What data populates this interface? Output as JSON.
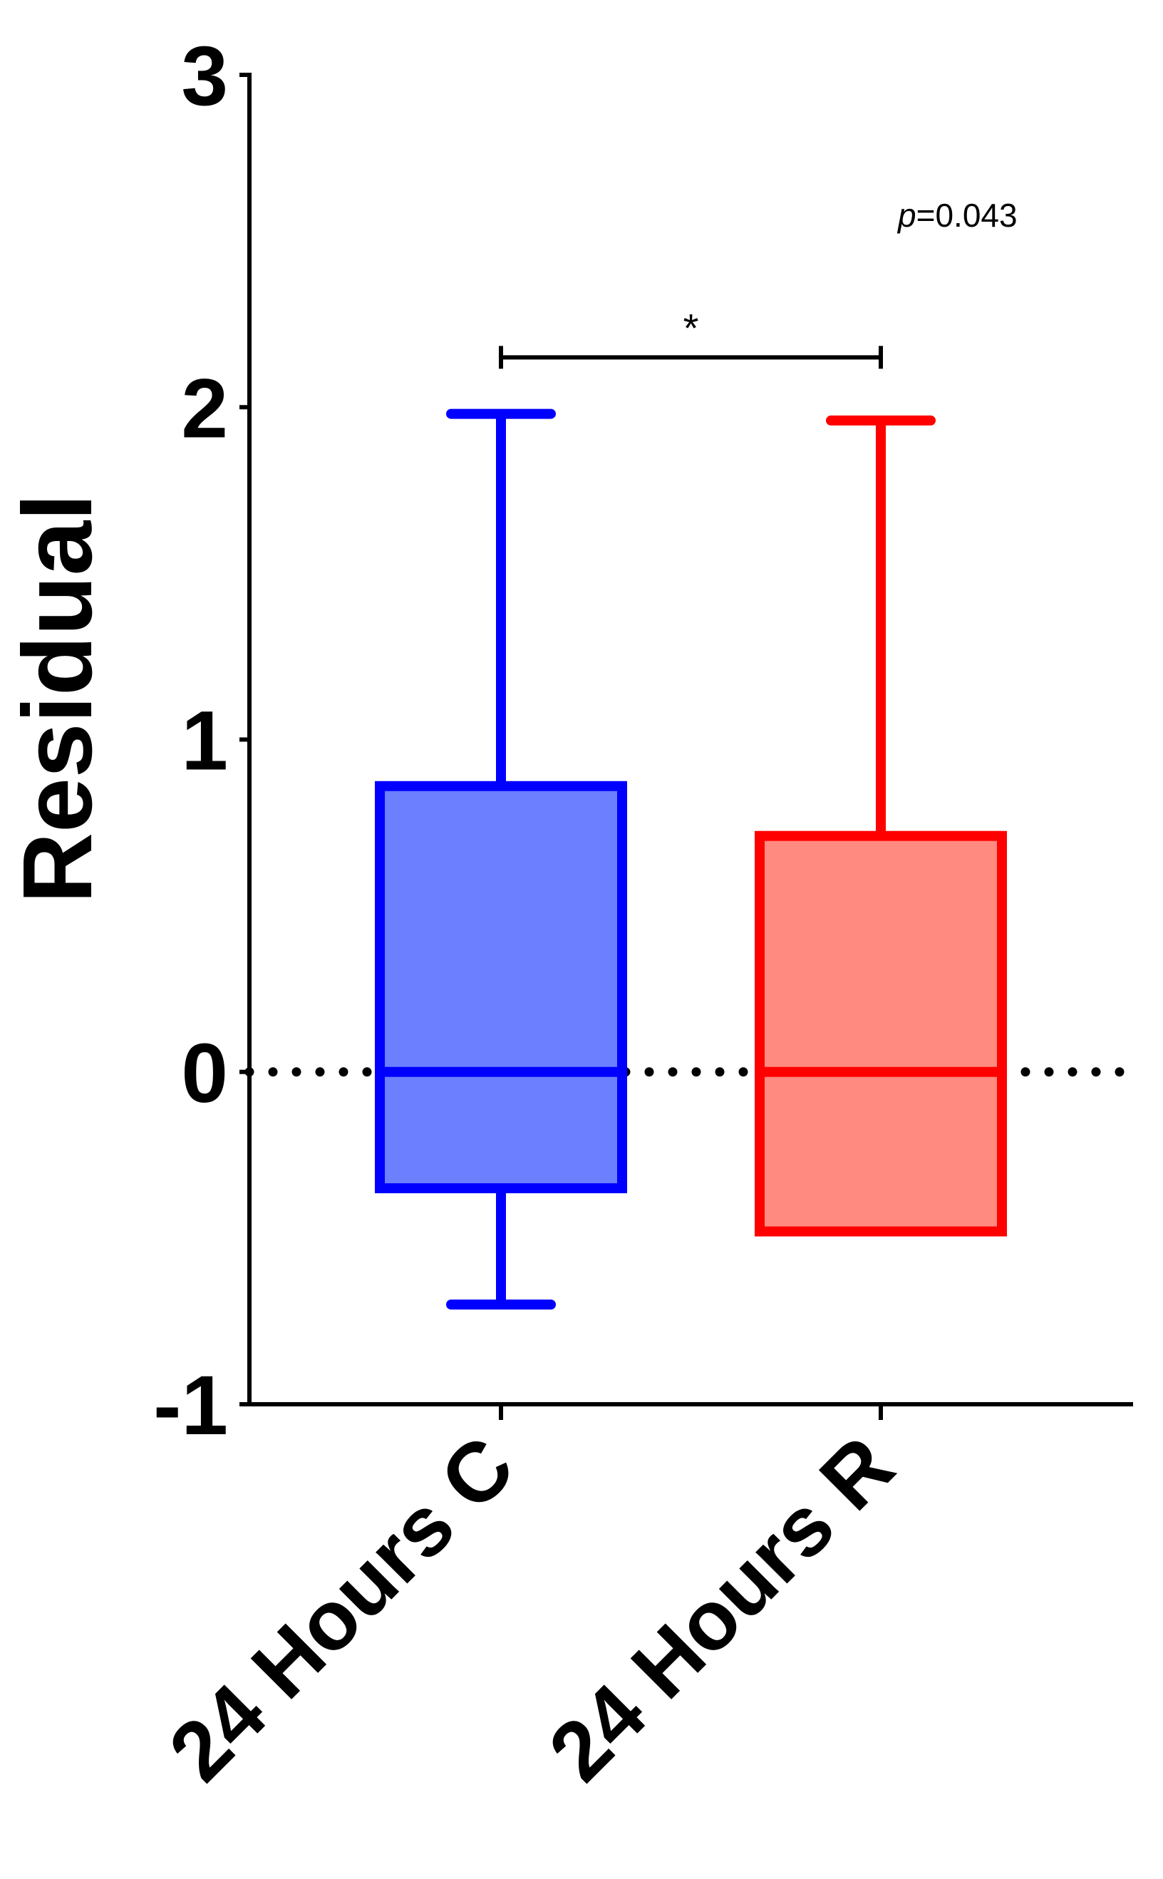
{
  "chart_data": {
    "type": "box",
    "ylabel": "Residual",
    "xlabel": "",
    "ylim": [
      -1,
      3
    ],
    "yticks": [
      -1,
      0,
      1,
      2,
      3
    ],
    "ytick_labels": [
      "-1",
      "0",
      "1",
      "2",
      "3"
    ],
    "reference_line": {
      "y": 0,
      "style": "dotted"
    },
    "categories": [
      "24 Hours C",
      "24 Hours R"
    ],
    "boxes": [
      {
        "name": "24 Hours C",
        "whisker_low": -0.7,
        "q1": -0.35,
        "median": 0,
        "q3": 0.86,
        "whisker_high": 1.98,
        "color": "#0000ff",
        "fill": "#6b7fff"
      },
      {
        "name": "24 Hours R",
        "whisker_low": -0.48,
        "q1": -0.48,
        "median": 0,
        "q3": 0.71,
        "whisker_high": 1.96,
        "color": "#ff0000",
        "fill": "#ff8a80"
      }
    ],
    "significance": {
      "from": 0,
      "to": 1,
      "y": 2.15,
      "marker": "*",
      "p_prefix": "p",
      "p_value": "=0.043"
    },
    "grid": false
  }
}
